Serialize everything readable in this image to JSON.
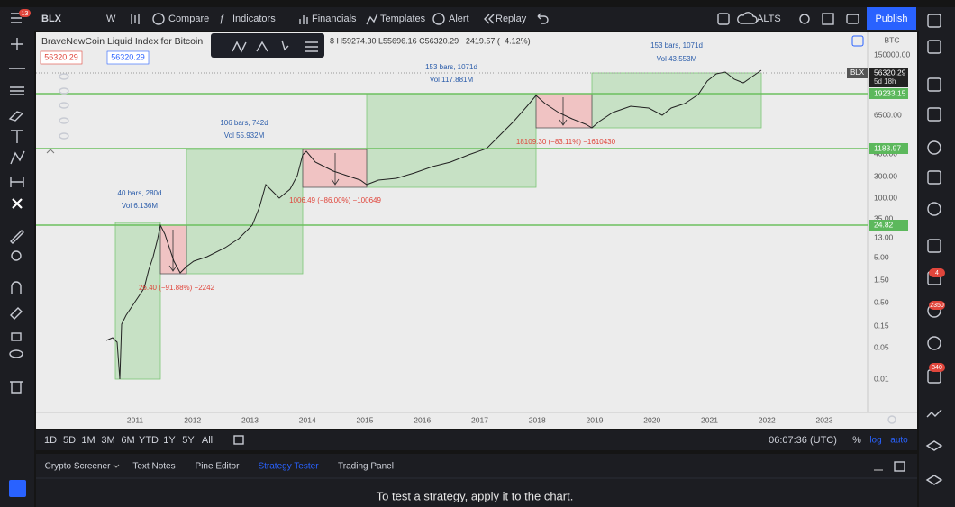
{
  "toolbar": {
    "notifications": "13",
    "symbol": "BLX",
    "interval": "W",
    "items": [
      "Compare",
      "Indicators",
      "Financials",
      "Templates",
      "Alert",
      "Replay"
    ],
    "alts": "ALTS",
    "publish": "Publish"
  },
  "header": {
    "title": "BraveNewCoin Liquid Index for Bitcoin",
    "ohlc": "8 H59274.30 L55696.16 C56320.29 −2419.57 (−4.12%)",
    "bid": "56320.29",
    "ask": "56320.29"
  },
  "price_axis": {
    "currency": "BTC",
    "labels": [
      "150000.00",
      "6500.00",
      "400.00",
      "300.00",
      "100.00",
      "35.00",
      "13.00",
      "5.00",
      "1.50",
      "0.50",
      "0.15",
      "0.05",
      "0.01"
    ],
    "symbol_tag": "BLX",
    "last_price": "56320.29",
    "countdown": "5d 18h",
    "levels": [
      "19233.15",
      "1183.97",
      "24.82"
    ]
  },
  "time_axis": [
    "2011",
    "2012",
    "2013",
    "2014",
    "2015",
    "2016",
    "2017",
    "2018",
    "2019",
    "2020",
    "2021",
    "2022",
    "2023"
  ],
  "annotations": {
    "ranges": [
      {
        "bars": "40 bars, 280d",
        "vol": "Vol 6.136M"
      },
      {
        "bars": "106 bars, 742d",
        "vol": "Vol 55.932M"
      },
      {
        "bars": "153 bars, 1071d",
        "vol": "Vol 117.881M"
      },
      {
        "bars": "153 bars, 1071d",
        "vol": "Vol 43.553M"
      }
    ],
    "drawdowns": [
      "26.40 (−91.88%) −2242",
      "1006.49 (−86.00%) −100649",
      "18109.30 (−83.11%) −1610430"
    ]
  },
  "bottom_bar": {
    "ranges": [
      "1D",
      "5D",
      "1M",
      "3M",
      "6M",
      "YTD",
      "1Y",
      "5Y",
      "All"
    ],
    "clock": "06:07:36 (UTC)",
    "percent": "%",
    "log": "log",
    "auto": "auto"
  },
  "panel": {
    "tabs": [
      "Crypto Screener",
      "Text Notes",
      "Pine Editor",
      "Strategy Tester",
      "Trading Panel"
    ],
    "message": "To test a strategy, apply it to the chart."
  },
  "right_sidebar": {
    "badges": [
      "4",
      "2350",
      "340"
    ]
  }
}
